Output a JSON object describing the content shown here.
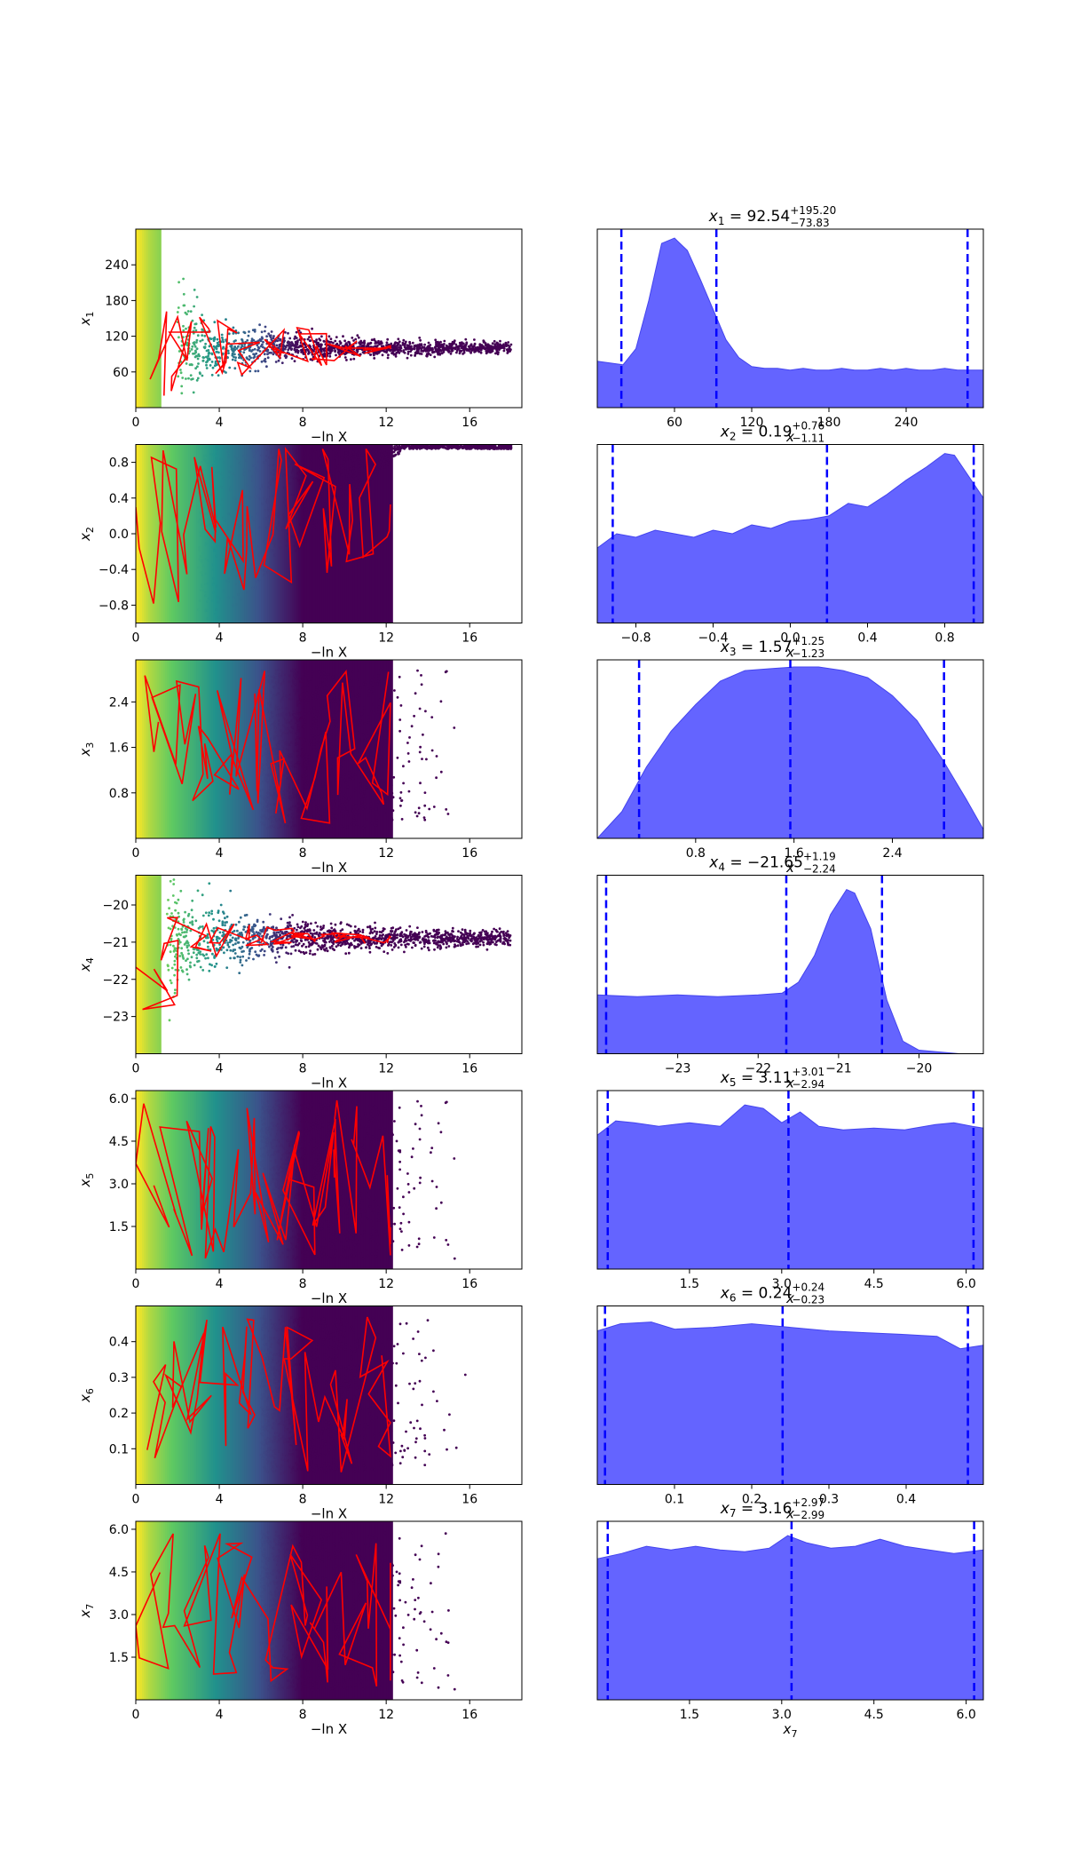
{
  "chart_data": {
    "type": "scatter",
    "description_free": true,
    "colors": {
      "trace_cmap": [
        "#440154",
        "#3b528b",
        "#21918c",
        "#5ec962",
        "#fde725"
      ],
      "trace_line": "#ff0000",
      "posterior_fill": "#6464ff",
      "posterior_edge": "#4444ee",
      "quantile_line": "#0000ff"
    },
    "trace_xlabel": "−ln X",
    "trace_xticks": [
      "0",
      "4",
      "8",
      "12",
      "16"
    ],
    "trace_xlim": [
      0,
      18.5
    ],
    "params": [
      {
        "label_sym": "x",
        "label_sub": "1",
        "title_main": "x",
        "title_sub": "1",
        "title_value": " = 92.54",
        "title_plus": "+195.20",
        "title_minus": "−73.83",
        "ylim": [
          0,
          300
        ],
        "yticks": [
          60,
          120,
          180,
          240
        ],
        "ytick_labels": [
          "60",
          "120",
          "180",
          "240"
        ],
        "xlabel": "x",
        "xticks": [
          60,
          120,
          180,
          240
        ],
        "xtick_labels": [
          "60",
          "120",
          "180",
          "240"
        ],
        "q": [
          18.71,
          92.54,
          287.74
        ],
        "posterior_x": [
          0,
          10,
          20,
          30,
          40,
          50,
          60,
          70,
          80,
          90,
          100,
          110,
          120,
          130,
          140,
          150,
          160,
          170,
          180,
          190,
          200,
          210,
          220,
          230,
          240,
          250,
          260,
          270,
          280,
          290,
          300
        ],
        "posterior_y": [
          0.26,
          0.25,
          0.24,
          0.33,
          0.6,
          0.92,
          0.95,
          0.88,
          0.72,
          0.55,
          0.38,
          0.28,
          0.23,
          0.22,
          0.22,
          0.21,
          0.22,
          0.21,
          0.21,
          0.22,
          0.21,
          0.21,
          0.22,
          0.21,
          0.22,
          0.21,
          0.21,
          0.22,
          0.21,
          0.21,
          0.21
        ],
        "trace": {
          "shape": "funnel",
          "center": 100,
          "spread": 30,
          "late": 100
        }
      },
      {
        "label_sym": "x",
        "label_sub": "2",
        "title_main": "x",
        "title_sub": "2",
        "title_value": " = 0.19",
        "title_plus": "+0.76",
        "title_minus": "−1.11",
        "ylim": [
          -1,
          1
        ],
        "yticks": [
          -0.8,
          -0.4,
          0.0,
          0.4,
          0.8
        ],
        "ytick_labels": [
          "−0.8",
          "−0.4",
          "0.0",
          "0.4",
          "0.8"
        ],
        "xlabel": "x",
        "xticks": [
          -0.8,
          -0.4,
          0.0,
          0.4,
          0.8
        ],
        "xtick_labels": [
          "−0.8",
          "−0.4",
          "0.0",
          "0.4",
          "0.8"
        ],
        "q": [
          -0.92,
          0.19,
          0.95
        ],
        "posterior_x": [
          -1.0,
          -0.9,
          -0.8,
          -0.7,
          -0.6,
          -0.5,
          -0.4,
          -0.3,
          -0.2,
          -0.1,
          0.0,
          0.1,
          0.2,
          0.3,
          0.4,
          0.5,
          0.6,
          0.7,
          0.8,
          0.85,
          0.9,
          1.0
        ],
        "posterior_y": [
          0.42,
          0.5,
          0.48,
          0.52,
          0.5,
          0.48,
          0.52,
          0.5,
          0.55,
          0.53,
          0.57,
          0.58,
          0.6,
          0.67,
          0.65,
          0.72,
          0.8,
          0.87,
          0.95,
          0.94,
          0.86,
          0.7
        ],
        "trace": {
          "shape": "wedge",
          "center": 0.0,
          "spread": 0.5,
          "late": 0.95
        }
      },
      {
        "label_sym": "x",
        "label_sub": "3",
        "title_main": "x",
        "title_sub": "3",
        "title_value": " = 1.57",
        "title_plus": "+1.25",
        "title_minus": "−1.23",
        "ylim": [
          0,
          3.14
        ],
        "yticks": [
          0.8,
          1.6,
          2.4
        ],
        "ytick_labels": [
          "0.8",
          "1.6",
          "2.4"
        ],
        "xlabel": "x",
        "xticks": [
          0.8,
          1.6,
          2.4
        ],
        "xtick_labels": [
          "0.8",
          "1.6",
          "2.4"
        ],
        "q": [
          0.34,
          1.57,
          2.82
        ],
        "posterior_x": [
          0.0,
          0.2,
          0.4,
          0.6,
          0.8,
          1.0,
          1.2,
          1.4,
          1.6,
          1.8,
          2.0,
          2.2,
          2.4,
          2.6,
          2.8,
          3.0,
          3.14
        ],
        "posterior_y": [
          0.0,
          0.15,
          0.4,
          0.6,
          0.75,
          0.88,
          0.94,
          0.95,
          0.96,
          0.96,
          0.94,
          0.9,
          0.8,
          0.66,
          0.45,
          0.22,
          0.05
        ],
        "trace": {
          "shape": "uniform",
          "center": 1.57,
          "spread": 1.4,
          "late": 1.57
        }
      },
      {
        "label_sym": "x",
        "label_sub": "4",
        "title_main": "x",
        "title_sub": "4",
        "title_value": " = −21.65",
        "title_plus": "+1.19",
        "title_minus": "−2.24",
        "ylim": [
          -24,
          -19.2
        ],
        "yticks": [
          -23,
          -22,
          -21,
          -20
        ],
        "ytick_labels": [
          "−23",
          "−22",
          "−21",
          "−20"
        ],
        "xlabel": "x",
        "xticks": [
          -23,
          -22,
          -21,
          -20
        ],
        "xtick_labels": [
          "−23",
          "−22",
          "−21",
          "−20"
        ],
        "q": [
          -23.89,
          -21.65,
          -20.46
        ],
        "posterior_x": [
          -24.0,
          -23.5,
          -23.0,
          -22.5,
          -22.0,
          -21.7,
          -21.5,
          -21.3,
          -21.1,
          -20.9,
          -20.8,
          -20.6,
          -20.4,
          -20.2,
          -20.0,
          -19.5
        ],
        "posterior_y": [
          0.33,
          0.32,
          0.33,
          0.32,
          0.33,
          0.34,
          0.4,
          0.55,
          0.78,
          0.92,
          0.9,
          0.7,
          0.3,
          0.07,
          0.02,
          0.0
        ],
        "trace": {
          "shape": "dip",
          "center": -20.9,
          "spread": 0.3,
          "late": -20.9
        }
      },
      {
        "label_sym": "x",
        "label_sub": "5",
        "title_main": "x",
        "title_sub": "5",
        "title_value": " = 3.11",
        "title_plus": "+3.01",
        "title_minus": "−2.94",
        "ylim": [
          0,
          6.28
        ],
        "yticks": [
          1.5,
          3.0,
          4.5,
          6.0
        ],
        "ytick_labels": [
          "1.5",
          "3.0",
          "4.5",
          "6.0"
        ],
        "xlabel": "x",
        "xticks": [
          1.5,
          3.0,
          4.5,
          6.0
        ],
        "xtick_labels": [
          "1.5",
          "3.0",
          "4.5",
          "6.0"
        ],
        "q": [
          0.17,
          3.11,
          6.12
        ],
        "posterior_x": [
          0.0,
          0.3,
          0.6,
          1.0,
          1.5,
          2.0,
          2.4,
          2.7,
          3.0,
          3.3,
          3.6,
          4.0,
          4.5,
          5.0,
          5.5,
          5.8,
          6.1,
          6.28
        ],
        "posterior_y": [
          0.75,
          0.83,
          0.82,
          0.8,
          0.82,
          0.8,
          0.92,
          0.9,
          0.82,
          0.88,
          0.8,
          0.78,
          0.79,
          0.78,
          0.81,
          0.82,
          0.8,
          0.79
        ],
        "trace": {
          "shape": "uniform",
          "center": 3.14,
          "spread": 2.8,
          "late": 3.14
        }
      },
      {
        "label_sym": "x",
        "label_sub": "6",
        "title_main": "x",
        "title_sub": "6",
        "title_value": " = 0.24",
        "title_plus": "+0.24",
        "title_minus": "−0.23",
        "ylim": [
          0,
          0.5
        ],
        "yticks": [
          0.1,
          0.2,
          0.3,
          0.4
        ],
        "ytick_labels": [
          "0.1",
          "0.2",
          "0.3",
          "0.4"
        ],
        "xlabel": "x",
        "xticks": [
          0.1,
          0.2,
          0.3,
          0.4
        ],
        "xtick_labels": [
          "0.1",
          "0.2",
          "0.3",
          "0.4"
        ],
        "q": [
          0.01,
          0.24,
          0.48
        ],
        "posterior_x": [
          0.0,
          0.03,
          0.07,
          0.1,
          0.15,
          0.2,
          0.25,
          0.3,
          0.35,
          0.4,
          0.44,
          0.47,
          0.5
        ],
        "posterior_y": [
          0.86,
          0.9,
          0.91,
          0.87,
          0.88,
          0.9,
          0.88,
          0.86,
          0.85,
          0.84,
          0.83,
          0.76,
          0.78
        ],
        "trace": {
          "shape": "uniform",
          "center": 0.25,
          "spread": 0.22,
          "late": 0.25
        }
      },
      {
        "label_sym": "x",
        "label_sub": "7",
        "title_main": "x",
        "title_sub": "7",
        "title_value": " = 3.16",
        "title_plus": "+2.97",
        "title_minus": "−2.99",
        "ylim": [
          0,
          6.28
        ],
        "yticks": [
          1.5,
          3.0,
          4.5,
          6.0
        ],
        "ytick_labels": [
          "1.5",
          "3.0",
          "4.5",
          "6.0"
        ],
        "xlabel": "x",
        "xlabel_sub": "7",
        "xticks": [
          1.5,
          3.0,
          4.5,
          6.0
        ],
        "xtick_labels": [
          "1.5",
          "3.0",
          "4.5",
          "6.0"
        ],
        "q": [
          0.17,
          3.16,
          6.13
        ],
        "posterior_x": [
          0.0,
          0.4,
          0.8,
          1.2,
          1.6,
          2.0,
          2.4,
          2.8,
          3.1,
          3.4,
          3.8,
          4.2,
          4.6,
          5.0,
          5.4,
          5.8,
          6.28
        ],
        "posterior_y": [
          0.79,
          0.82,
          0.86,
          0.84,
          0.86,
          0.84,
          0.83,
          0.85,
          0.92,
          0.88,
          0.85,
          0.86,
          0.9,
          0.86,
          0.84,
          0.82,
          0.84
        ],
        "trace": {
          "shape": "uniform",
          "center": 3.14,
          "spread": 2.8,
          "late": 3.14
        }
      }
    ]
  }
}
